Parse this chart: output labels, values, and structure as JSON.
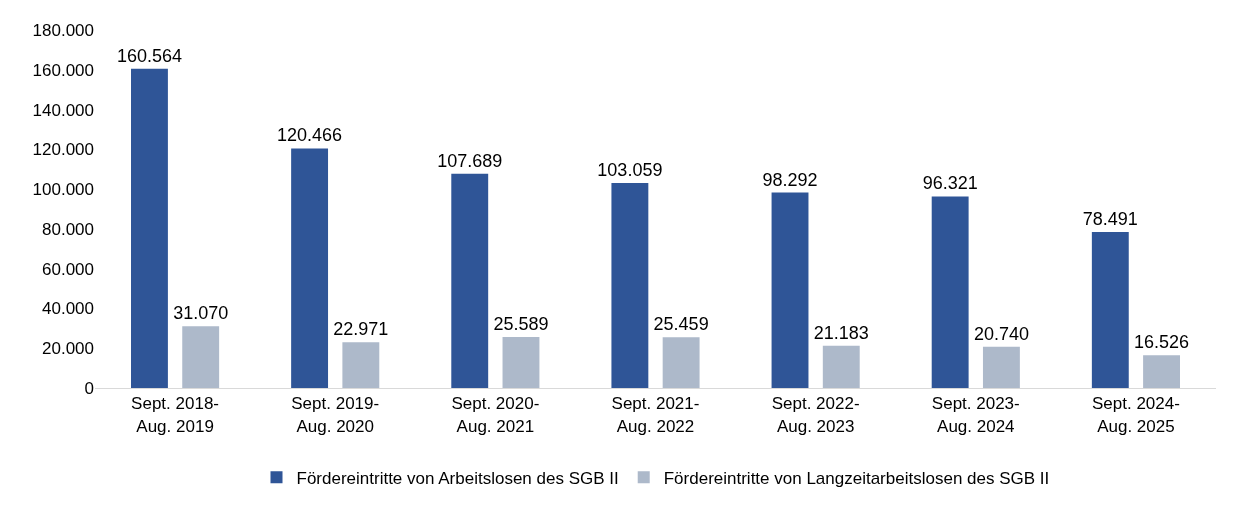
{
  "chart_data": {
    "type": "bar",
    "categories": [
      "Sept. 2018-\nAug. 2019",
      "Sept. 2019-\nAug. 2020",
      "Sept. 2020-\nAug. 2021",
      "Sept. 2021-\nAug. 2022",
      "Sept. 2022-\nAug. 2023",
      "Sept. 2023-\nAug. 2024",
      "Sept. 2024-\nAug. 2025"
    ],
    "series": [
      {
        "name": "Fördereintritte von Arbeitslosen des SGB II",
        "color": "#2f5597",
        "values": [
          160564,
          120466,
          107689,
          103059,
          98292,
          96321,
          78491
        ],
        "value_labels": [
          "160.564",
          "120.466",
          "107.689",
          "103.059",
          "98.292",
          "96.321",
          "78.491"
        ]
      },
      {
        "name": "Fördereintritte von Langzeitarbeitslosen des SGB II",
        "color": "#adb9ca",
        "values": [
          31070,
          22971,
          25589,
          25459,
          21183,
          20740,
          16526
        ],
        "value_labels": [
          "31.070",
          "22.971",
          "25.589",
          "25.459",
          "21.183",
          "20.740",
          "16.526"
        ]
      }
    ],
    "ylim": [
      0,
      180000
    ],
    "yticks": [
      0,
      {
        "value": 20000,
        "label": "20.000"
      },
      {
        "value": 40000,
        "label": "40.000"
      },
      {
        "value": 60000,
        "label": "60.000"
      },
      {
        "value": 80000,
        "label": "80.000"
      },
      {
        "value": 100000,
        "label": "100.000"
      },
      {
        "value": 120000,
        "label": "120.000"
      },
      {
        "value": 140000,
        "label": "140.000"
      },
      {
        "value": 160000,
        "label": "160.000"
      },
      {
        "value": 180000,
        "label": "180.000"
      }
    ],
    "legend": "bottom"
  }
}
